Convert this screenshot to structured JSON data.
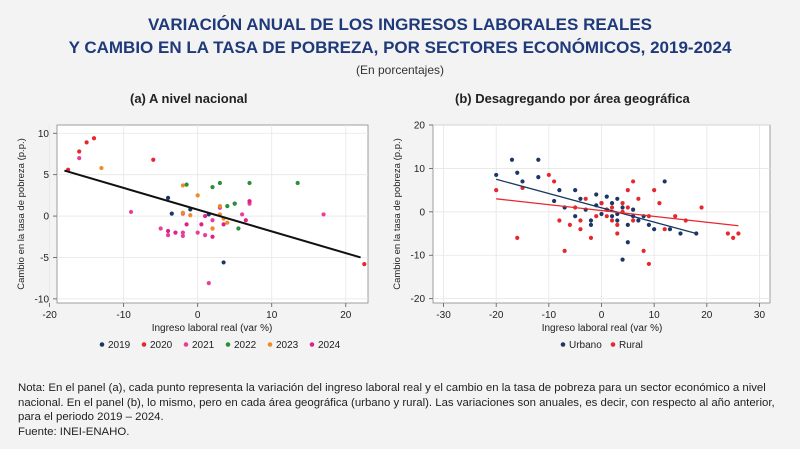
{
  "header": {
    "title_line1": "VARIACIÓN ANUAL DE LOS INGRESOS LABORALES REALES",
    "title_line2": "Y CAMBIO EN LA TASA DE POBREZA, POR SECTORES ECONÓMICOS, 2019-2024",
    "subtitle": "(En porcentajes)"
  },
  "panels": {
    "a_title": "(a) A nivel nacional",
    "b_title": "(b) Desagregando por área geográfica"
  },
  "note": {
    "text": "Nota: En el panel (a), cada punto representa la variación del ingreso laboral real y el cambio en la tasa de pobreza para un sector económico a nivel nacional. En el panel (b), lo mismo, pero en cada área geográfica (urbano y rural). Las variaciones son anuales, es decir, con respecto al año anterior, para el periodo 2019 – 2024.",
    "source": "Fuente: INEI-ENAHO."
  },
  "chart_data": [
    {
      "type": "scatter",
      "title": "(a) A nivel nacional",
      "xlabel": "Ingreso laboral real (var %)",
      "ylabel": "Cambio en la tasa de pobreza (p.p.)",
      "xlim": [
        -19,
        23
      ],
      "ylim": [
        -10.5,
        11
      ],
      "xticks": [
        -20,
        -10,
        0,
        10,
        20
      ],
      "yticks": [
        -10,
        -5,
        0,
        5,
        10
      ],
      "grid": true,
      "legend": "bottom",
      "trendline": {
        "x": [
          -18,
          22
        ],
        "y": [
          5.5,
          -5
        ]
      },
      "series": [
        {
          "name": "2019",
          "color": "#1b3766",
          "points": [
            [
              -3.5,
              0.3
            ],
            [
              1.5,
              0.2
            ],
            [
              3.5,
              -5.6
            ],
            [
              -1,
              0.8
            ],
            [
              -4,
              2.2
            ]
          ]
        },
        {
          "name": "2020",
          "color": "#e8262d",
          "points": [
            [
              -17.5,
              5.6
            ],
            [
              -16,
              7.8
            ],
            [
              -15,
              8.9
            ],
            [
              -14,
              9.4
            ],
            [
              -6,
              6.8
            ],
            [
              22.5,
              -5.8
            ]
          ]
        },
        {
          "name": "2021",
          "color": "#e83e9a",
          "points": [
            [
              -16,
              7
            ],
            [
              -9,
              0.5
            ],
            [
              -5,
              -1.5
            ],
            [
              -4,
              -2.3
            ],
            [
              -2,
              -2.4
            ],
            [
              -2,
              -2
            ],
            [
              0,
              -2
            ],
            [
              1,
              -2.3
            ],
            [
              2,
              -1.5
            ],
            [
              2,
              -0.5
            ],
            [
              1.5,
              -8.1
            ],
            [
              6,
              0.2
            ],
            [
              7,
              1.5
            ],
            [
              17,
              0.2
            ],
            [
              3,
              1
            ],
            [
              -2,
              0.3
            ],
            [
              5,
              1.5
            ]
          ]
        },
        {
          "name": "2022",
          "color": "#2a8f3a",
          "points": [
            [
              -1.5,
              3.8
            ],
            [
              2,
              3.5
            ],
            [
              3,
              4
            ],
            [
              4,
              1.2
            ],
            [
              5,
              1.5
            ],
            [
              5.5,
              -1.5
            ],
            [
              7,
              4
            ],
            [
              13.5,
              4
            ]
          ]
        },
        {
          "name": "2023",
          "color": "#f08a24",
          "points": [
            [
              -13,
              5.8
            ],
            [
              -2,
              3.7
            ],
            [
              -2,
              0.4
            ],
            [
              -1,
              0.1
            ],
            [
              3,
              0.2
            ],
            [
              3.5,
              -0.3
            ],
            [
              4,
              -0.8
            ],
            [
              0,
              2.5
            ],
            [
              2,
              -1.5
            ],
            [
              3,
              1.2
            ]
          ]
        },
        {
          "name": "2024",
          "color": "#e0208a",
          "points": [
            [
              -3,
              -2
            ],
            [
              -1.5,
              -1
            ],
            [
              0.5,
              -1
            ],
            [
              2,
              -2.5
            ],
            [
              3.5,
              -1
            ],
            [
              6.5,
              -0.5
            ],
            [
              7,
              1.8
            ],
            [
              -4,
              -1.8
            ],
            [
              1,
              0
            ]
          ]
        }
      ]
    },
    {
      "type": "scatter",
      "title": "(b) Desagregando por área geográfica",
      "xlabel": "Ingreso laboral real (var %)",
      "ylabel": "Cambio en la tasa de pobreza (p.p.)",
      "xlim": [
        -32,
        32
      ],
      "ylim": [
        -21,
        20
      ],
      "xticks": [
        -30,
        -20,
        -10,
        0,
        10,
        20,
        30
      ],
      "yticks": [
        -20,
        -10,
        0,
        10,
        20
      ],
      "grid": true,
      "legend": "bottom",
      "trendlines": [
        {
          "series": "Urbano",
          "color": "#1b3766",
          "x": [
            -20,
            18
          ],
          "y": [
            7.5,
            -5
          ]
        },
        {
          "series": "Rural",
          "color": "#e8262d",
          "x": [
            -20,
            26
          ],
          "y": [
            3,
            -3.2
          ]
        }
      ],
      "series": [
        {
          "name": "Urbano",
          "color": "#1b3766",
          "points": [
            [
              -20,
              8.5
            ],
            [
              -17,
              12
            ],
            [
              -16,
              9
            ],
            [
              -15,
              7
            ],
            [
              -12,
              8
            ],
            [
              -9,
              2.5
            ],
            [
              -8,
              5
            ],
            [
              -7,
              1
            ],
            [
              -5,
              -1
            ],
            [
              -4,
              3
            ],
            [
              -3,
              0.5
            ],
            [
              -2,
              -2
            ],
            [
              -1,
              4
            ],
            [
              0,
              2
            ],
            [
              1,
              3.5
            ],
            [
              1,
              0.5
            ],
            [
              2,
              -1
            ],
            [
              3,
              3
            ],
            [
              3,
              -2
            ],
            [
              4,
              1
            ],
            [
              5,
              -3
            ],
            [
              5,
              -7
            ],
            [
              6,
              -1
            ],
            [
              7,
              -2
            ],
            [
              8,
              -1
            ],
            [
              9,
              -3
            ],
            [
              10,
              -4
            ],
            [
              12,
              7
            ],
            [
              13,
              -4
            ],
            [
              15,
              -5
            ],
            [
              18,
              -5
            ],
            [
              0,
              -0.5
            ],
            [
              2,
              2
            ],
            [
              -5,
              5
            ],
            [
              -2,
              -3
            ],
            [
              4,
              -11
            ],
            [
              6,
              0.5
            ],
            [
              -1,
              1.5
            ],
            [
              3,
              -0.5
            ],
            [
              -12,
              12
            ]
          ]
        },
        {
          "name": "Rural",
          "color": "#e8262d",
          "points": [
            [
              -20,
              5
            ],
            [
              -16,
              -6
            ],
            [
              -15,
              5.5
            ],
            [
              -10,
              8.5
            ],
            [
              -9,
              7
            ],
            [
              -7,
              -9
            ],
            [
              -6,
              -3
            ],
            [
              -5,
              1
            ],
            [
              -4,
              -2
            ],
            [
              -2,
              -6
            ],
            [
              0,
              2
            ],
            [
              1,
              -1
            ],
            [
              2,
              1
            ],
            [
              3,
              -3
            ],
            [
              4,
              0
            ],
            [
              5,
              1
            ],
            [
              6,
              -2
            ],
            [
              7,
              3
            ],
            [
              8,
              -9
            ],
            [
              9,
              -12
            ],
            [
              10,
              5
            ],
            [
              11,
              2
            ],
            [
              12,
              -4
            ],
            [
              14,
              -1
            ],
            [
              16,
              -2
            ],
            [
              19,
              1
            ],
            [
              24,
              -5
            ],
            [
              25,
              -6
            ],
            [
              26,
              -5
            ],
            [
              -3,
              3
            ],
            [
              -1,
              -1
            ],
            [
              1,
              0.5
            ],
            [
              4,
              2
            ],
            [
              6,
              7
            ],
            [
              9,
              -1
            ],
            [
              -8,
              -2
            ],
            [
              3,
              -5
            ],
            [
              5,
              5
            ],
            [
              -4,
              -4
            ],
            [
              2,
              -2
            ]
          ]
        }
      ]
    }
  ]
}
